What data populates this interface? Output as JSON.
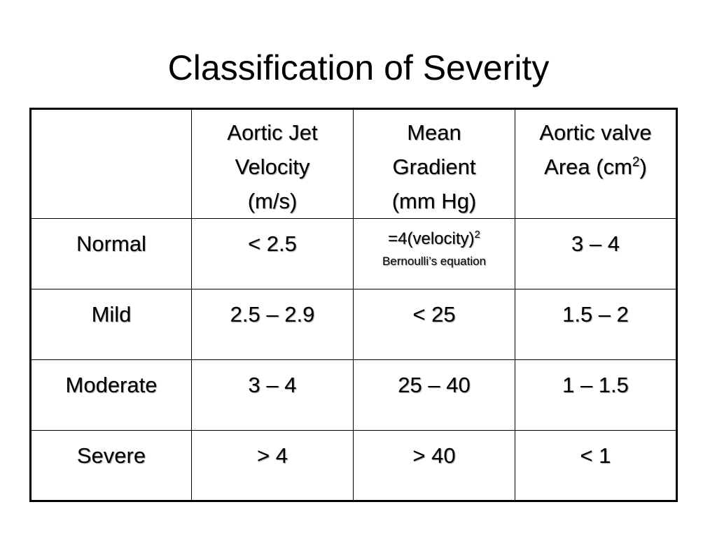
{
  "slide": {
    "title": "Classification of Severity"
  },
  "table": {
    "headers": {
      "blank": "",
      "velocity": [
        "Aortic Jet",
        "Velocity",
        "(m/s)"
      ],
      "gradient": [
        "Mean",
        "Gradient",
        "(mm Hg)"
      ],
      "area": {
        "line1": "Aortic valve",
        "line2_prefix": "Area (cm",
        "line2_sup": "2",
        "line2_suffix": ")"
      }
    },
    "rows": [
      {
        "label": "Normal",
        "velocity": "< 2.5",
        "gradient_formula": "=4(velocity)",
        "gradient_formula_sup": "2",
        "gradient_note": "Bernoulli’s equation",
        "area": "3 – 4"
      },
      {
        "label": "Mild",
        "velocity": "2.5 – 2.9",
        "gradient": "< 25",
        "area": "1.5 – 2"
      },
      {
        "label": "Moderate",
        "velocity": "3 – 4",
        "gradient": "25 – 40",
        "area": "1 – 1.5"
      },
      {
        "label": "Severe",
        "velocity": "> 4",
        "gradient": "> 40",
        "area": "< 1"
      }
    ]
  }
}
